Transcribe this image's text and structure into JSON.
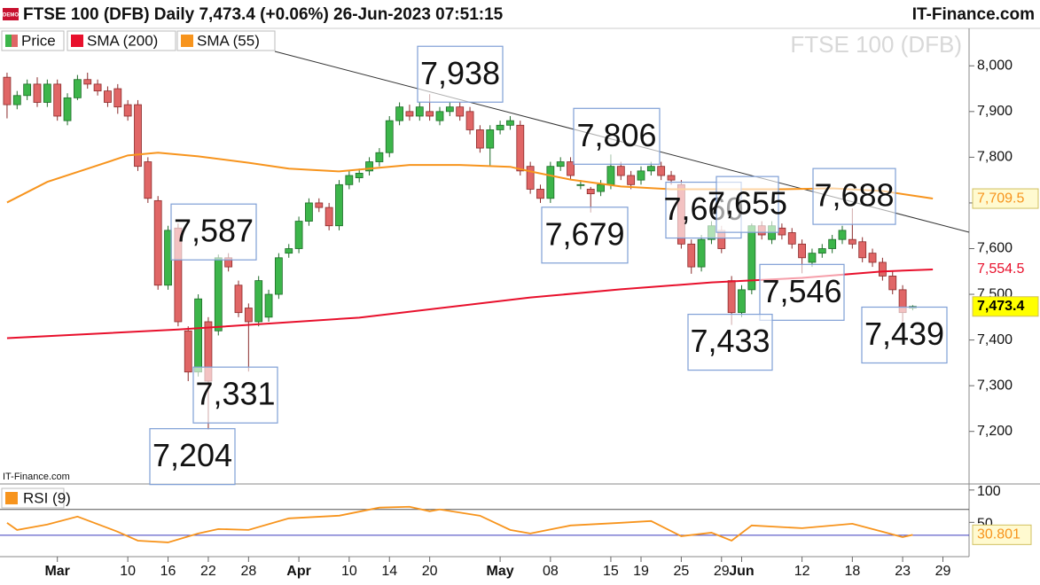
{
  "header": {
    "logo": "DEMO",
    "title": "FTSE 100 (DFB) Daily 7,473.4 (+0.06%) 26-Jun-2023 07:51:15",
    "brand": "IT-Finance.com"
  },
  "chart_data": [
    {
      "type": "candlestick",
      "watermark": "FTSE 100 (DFB)",
      "credit": "IT-Finance.com",
      "xlim": [
        -0.7,
        95.6
      ],
      "xticks": [
        {
          "value": 5,
          "label": "Mar"
        },
        {
          "value": 12,
          "label": "10"
        },
        {
          "value": 16,
          "label": "16"
        },
        {
          "value": 20,
          "label": "22"
        },
        {
          "value": 24,
          "label": "28"
        },
        {
          "value": 29,
          "label": "Apr"
        },
        {
          "value": 34,
          "label": "10"
        },
        {
          "value": 38,
          "label": "14"
        },
        {
          "value": 42,
          "label": "20"
        },
        {
          "value": 49,
          "label": "May"
        },
        {
          "value": 54,
          "label": "08"
        },
        {
          "value": 60,
          "label": "15"
        },
        {
          "value": 63,
          "label": "19"
        },
        {
          "value": 67,
          "label": "25"
        },
        {
          "value": 71,
          "label": "29"
        },
        {
          "value": 73,
          "label": "Jun"
        },
        {
          "value": 79,
          "label": "12"
        },
        {
          "value": 84,
          "label": "18"
        },
        {
          "value": 89,
          "label": "23"
        },
        {
          "value": 93,
          "label": "29"
        }
      ],
      "ylim": [
        7085,
        8082
      ],
      "yticks": [
        {
          "value": 7200,
          "label": "7,200"
        },
        {
          "value": 7300,
          "label": "7,300"
        },
        {
          "value": 7400,
          "label": "7,400"
        },
        {
          "value": 7500,
          "label": "7,500"
        },
        {
          "value": 7600,
          "label": "7,600"
        },
        {
          "value": 7700,
          "label": "7,700"
        },
        {
          "value": 7800,
          "label": "7,800"
        },
        {
          "value": 7900,
          "label": "7,900"
        },
        {
          "value": 8000,
          "label": "8,000"
        }
      ],
      "series": [
        {
          "name": "Price",
          "up_color": "#3cb54a",
          "down_color": "#e06666",
          "last_label": "7,473.4",
          "open": [
            7975,
            7915,
            7935,
            7960,
            7920,
            7960,
            7880,
            7930,
            7970,
            7960,
            7945,
            7950,
            7915,
            7915,
            7790,
            7705,
            7520,
            7645,
            7420,
            7330,
            7440,
            7420,
            7580,
            7520,
            7470,
            7440,
            7450,
            7500,
            7590,
            7600,
            7660,
            7700,
            7690,
            7650,
            7740,
            7755,
            7770,
            7790,
            7810,
            7880,
            7900,
            7890,
            7900,
            7880,
            7900,
            7910,
            7900,
            7860,
            7820,
            7860,
            7870,
            7870,
            7780,
            7730,
            7710,
            7780,
            7790,
            7740,
            7730,
            7725,
            7740,
            7780,
            7760,
            7750,
            7770,
            7780,
            7760,
            7740,
            7610,
            7560,
            7620,
            7640,
            7530,
            7460,
            7510,
            7650,
            7620,
            7645,
            7635,
            7610,
            7570,
            7590,
            7600,
            7620,
            7620,
            7615,
            7590,
            7570,
            7540,
            7510,
            7470
          ],
          "high": [
            7985,
            7945,
            7970,
            7975,
            7970,
            7970,
            7940,
            7980,
            7985,
            7970,
            7955,
            7960,
            7925,
            7925,
            7800,
            7715,
            7650,
            7655,
            7430,
            7500,
            7450,
            7587,
            7590,
            7530,
            7480,
            7540,
            7510,
            7590,
            7610,
            7670,
            7710,
            7710,
            7700,
            7750,
            7770,
            7775,
            7800,
            7820,
            7890,
            7920,
            7915,
            7920,
            7938,
            7910,
            7920,
            7920,
            7910,
            7870,
            7870,
            7880,
            7890,
            7880,
            7790,
            7740,
            7790,
            7800,
            7800,
            7750,
            7735,
            7750,
            7806,
            7790,
            7770,
            7780,
            7790,
            7790,
            7770,
            7750,
            7620,
            7630,
            7660,
            7650,
            7540,
            7520,
            7655,
            7660,
            7660,
            7655,
            7645,
            7620,
            7600,
            7610,
            7630,
            7650,
            7688,
            7625,
            7600,
            7580,
            7550,
            7520,
            7476
          ],
          "low": [
            7885,
            7905,
            7925,
            7910,
            7910,
            7880,
            7870,
            7925,
            7950,
            7935,
            7910,
            7895,
            7880,
            7770,
            7700,
            7510,
            7510,
            7430,
            7310,
            7320,
            7204,
            7410,
            7550,
            7450,
            7331,
            7430,
            7440,
            7490,
            7580,
            7590,
            7650,
            7680,
            7640,
            7640,
            7730,
            7745,
            7760,
            7780,
            7800,
            7870,
            7880,
            7880,
            7880,
            7870,
            7890,
            7880,
            7850,
            7810,
            7780,
            7850,
            7860,
            7760,
            7720,
            7700,
            7700,
            7770,
            7750,
            7730,
            7679,
            7715,
            7730,
            7750,
            7730,
            7740,
            7760,
            7750,
            7740,
            7600,
            7545,
            7550,
            7610,
            7590,
            7433,
            7450,
            7500,
            7620,
            7610,
            7620,
            7600,
            7546,
            7560,
            7580,
            7590,
            7610,
            7600,
            7570,
            7560,
            7530,
            7500,
            7439,
            7465
          ],
          "close": [
            7915,
            7935,
            7960,
            7920,
            7960,
            7890,
            7930,
            7970,
            7960,
            7945,
            7920,
            7910,
            7890,
            7780,
            7710,
            7520,
            7640,
            7440,
            7330,
            7490,
            7310,
            7580,
            7560,
            7460,
            7440,
            7530,
            7500,
            7580,
            7600,
            7660,
            7700,
            7690,
            7650,
            7740,
            7760,
            7765,
            7790,
            7810,
            7880,
            7910,
            7890,
            7910,
            7890,
            7900,
            7910,
            7890,
            7860,
            7820,
            7860,
            7870,
            7880,
            7770,
            7730,
            7710,
            7780,
            7790,
            7760,
            7740,
            7720,
            7740,
            7780,
            7760,
            7740,
            7770,
            7780,
            7760,
            7750,
            7610,
            7560,
            7620,
            7650,
            7600,
            7460,
            7510,
            7650,
            7630,
            7650,
            7630,
            7610,
            7580,
            7590,
            7600,
            7620,
            7640,
            7610,
            7580,
            7570,
            7540,
            7510,
            7460,
            7473.4
          ]
        },
        {
          "name": "SMA (200)",
          "color": "#e8102c",
          "last_label": "7,554.5",
          "x": [
            0,
            17,
            35,
            52,
            61,
            70,
            79,
            87,
            92
          ],
          "values": [
            7404,
            7423,
            7449,
            7493,
            7511,
            7526,
            7536,
            7550,
            7554.5
          ]
        },
        {
          "name": "SMA (55)",
          "color": "#f7941d",
          "last_label": "7,709.5",
          "x": [
            0,
            4,
            8,
            12,
            15,
            19,
            24,
            28,
            33,
            36,
            40,
            45,
            50,
            52,
            56,
            61,
            66,
            72,
            77,
            82,
            87,
            92
          ],
          "values": [
            7701,
            7746,
            7775,
            7804,
            7810,
            7802,
            7788,
            7775,
            7769,
            7775,
            7783,
            7783,
            7779,
            7769,
            7751,
            7736,
            7730,
            7730,
            7730,
            7732,
            7726,
            7709.5
          ]
        }
      ],
      "annotations": [
        {
          "value": 7938,
          "label": "7,938"
        },
        {
          "value": 7806,
          "label": "7,806"
        },
        {
          "value": 7587,
          "label": "7,587"
        },
        {
          "value": 7679,
          "label": "7,679"
        },
        {
          "value": 7660,
          "label": "7,660"
        },
        {
          "value": 7655,
          "label": "7,655"
        },
        {
          "value": 7688,
          "label": "7,688"
        },
        {
          "value": 7546,
          "label": "7,546"
        },
        {
          "value": 7433,
          "label": "7,433"
        },
        {
          "value": 7439,
          "label": "7,439"
        },
        {
          "value": 7331,
          "label": "7,331"
        },
        {
          "value": 7204,
          "label": "7,204"
        }
      ]
    },
    {
      "type": "line",
      "xlim": [
        -0.7,
        95.6
      ],
      "ylim": [
        -3,
        108
      ],
      "yticks": [
        100,
        50
      ],
      "levels": [
        70,
        30
      ],
      "series": [
        {
          "name": "RSI (9)",
          "color": "#f7941d",
          "last_label": "30.801",
          "x": [
            0,
            1,
            4,
            7,
            11,
            13,
            16,
            19,
            21,
            24,
            28,
            33,
            37,
            40,
            42,
            43,
            47,
            50,
            52,
            56,
            61,
            64,
            67,
            70,
            72,
            74,
            79,
            84,
            87,
            89,
            90
          ],
          "values": [
            49.3,
            38.3,
            46.6,
            59,
            35.5,
            21.7,
            19,
            32.8,
            39.7,
            38.3,
            56.2,
            60.3,
            72.8,
            74.1,
            67.2,
            70,
            60.3,
            38.3,
            32.8,
            45.2,
            49.3,
            52.1,
            28.6,
            34.1,
            21.7,
            45.2,
            41,
            47.9,
            35.5,
            27.2,
            30.801
          ]
        }
      ]
    }
  ]
}
